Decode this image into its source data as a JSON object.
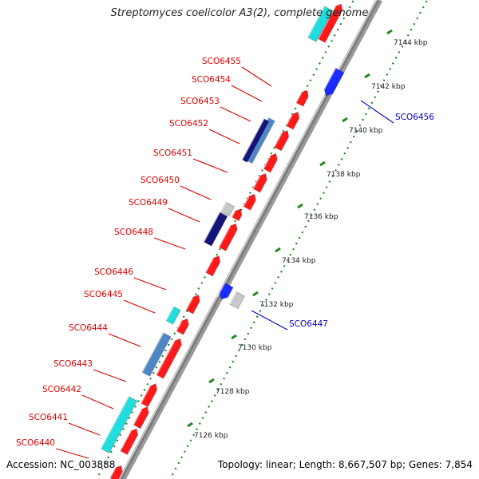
{
  "title": "Streptomyces coelicolor A3(2), complete genome",
  "accession_label": "Accession: NC_003888",
  "stats_label": "Topology: linear; Length: 8,667,507 bp; Genes: 7,854",
  "colors": {
    "forward_gene": "#ff1a1a",
    "reverse_gene": "#1a2cff",
    "cyan_feature": "#22dddd",
    "steel_feature": "#4f86c6",
    "navy_feature": "#13137a",
    "grey_feature": "#c8c8c8",
    "tick": "#228822",
    "label_forward": "#dd0000",
    "label_reverse": "#0000cc"
  },
  "ruler_ticks": [
    {
      "label": "7144 kbp"
    },
    {
      "label": "7142 kbp"
    },
    {
      "label": "7140 kbp"
    },
    {
      "label": "7138 kbp"
    },
    {
      "label": "7136 kbp"
    },
    {
      "label": "7134 kbp"
    },
    {
      "label": "7132 kbp"
    },
    {
      "label": "7130 kbp"
    },
    {
      "label": "7128 kbp"
    },
    {
      "label": "7126 kbp"
    }
  ],
  "gene_labels": [
    {
      "label": "SCO6455",
      "strand": "forward"
    },
    {
      "label": "SCO6454",
      "strand": "forward"
    },
    {
      "label": "SCO6453",
      "strand": "forward"
    },
    {
      "label": "SCO6452",
      "strand": "forward"
    },
    {
      "label": "SCO6451",
      "strand": "forward"
    },
    {
      "label": "SCO6450",
      "strand": "forward"
    },
    {
      "label": "SCO6449",
      "strand": "forward"
    },
    {
      "label": "SCO6448",
      "strand": "forward"
    },
    {
      "label": "SCO6446",
      "strand": "forward"
    },
    {
      "label": "SCO6445",
      "strand": "forward"
    },
    {
      "label": "SCO6444",
      "strand": "forward"
    },
    {
      "label": "SCO6443",
      "strand": "forward"
    },
    {
      "label": "SCO6442",
      "strand": "forward"
    },
    {
      "label": "SCO6441",
      "strand": "forward"
    },
    {
      "label": "SCO6440",
      "strand": "forward"
    },
    {
      "label": "SCO6456",
      "strand": "reverse"
    },
    {
      "label": "SCO6447",
      "strand": "reverse"
    }
  ]
}
